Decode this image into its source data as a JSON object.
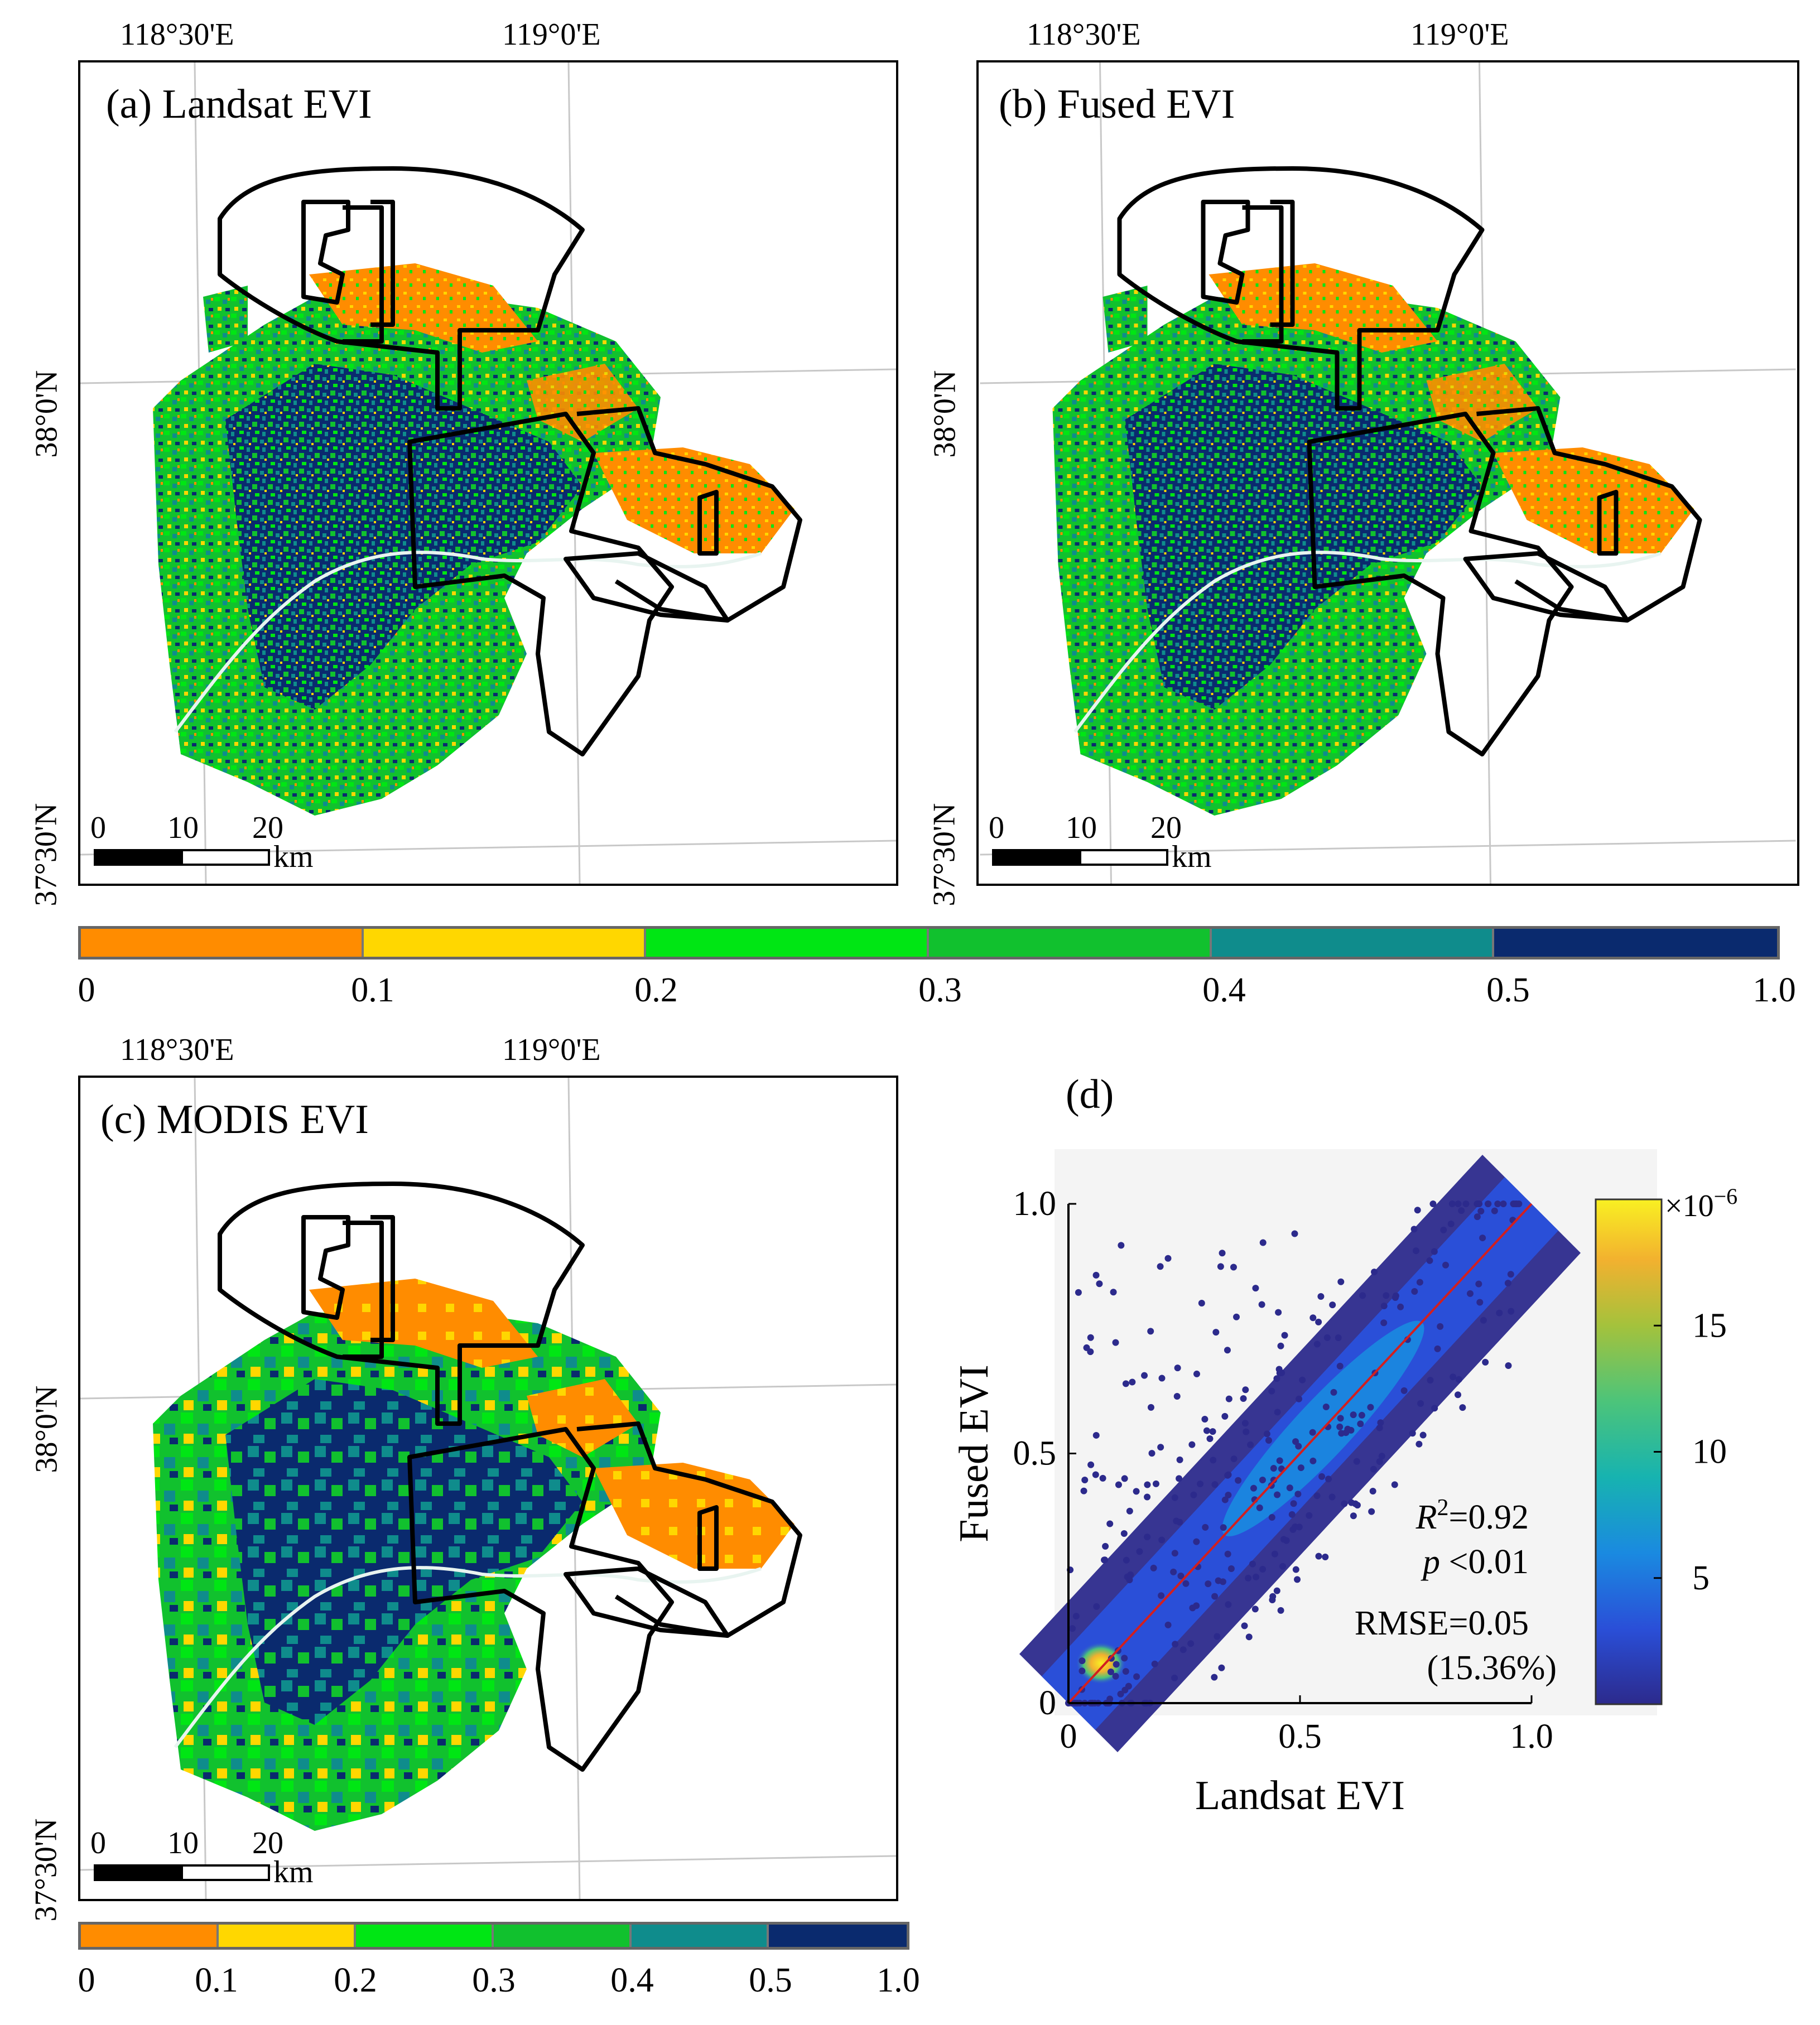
{
  "panels": [
    {
      "id": "a",
      "title": "(a) Landsat EVI",
      "lon_labels": [
        "118°30'E",
        "119°0'E"
      ],
      "lat_labels": [
        "38°0'N",
        "37°30'N"
      ],
      "scale_labels": [
        "0",
        "10",
        "20"
      ],
      "scale_unit": "km"
    },
    {
      "id": "b",
      "title": "(b) Fused EVI",
      "lon_labels": [
        "118°30'E",
        "119°0'E"
      ],
      "lat_labels": [
        "38°0'N",
        "37°30'N"
      ],
      "scale_labels": [
        "0",
        "10",
        "20"
      ],
      "scale_unit": "km"
    },
    {
      "id": "c",
      "title": "(c) MODIS EVI",
      "lon_labels": [
        "118°30'E",
        "119°0'E"
      ],
      "lat_labels": [
        "38°0'N",
        "37°30'N"
      ],
      "scale_labels": [
        "0",
        "10",
        "20"
      ],
      "scale_unit": "km"
    }
  ],
  "legend": {
    "colors": [
      "#ff8c00",
      "#ffd700",
      "#00e614",
      "#11c12e",
      "#0f8c8c",
      "#0a2a6e"
    ],
    "labels": [
      "0",
      "0.1",
      "0.2",
      "0.3",
      "0.4",
      "0.5",
      "1.0"
    ]
  },
  "chart_data": {
    "type": "scatter",
    "title": "(d)",
    "xlabel": "Landsat EVI",
    "ylabel": "Fused EVI",
    "xlim": [
      0,
      1.0
    ],
    "ylim": [
      0,
      1.0
    ],
    "xticks": [
      "0",
      "0.5",
      "1.0"
    ],
    "yticks": [
      "0",
      "0.5",
      "1.0"
    ],
    "reference_line": "1:1",
    "stats": {
      "r2_symbol": "R",
      "r2_sup": "2",
      "r2_value": "=0.92",
      "p_symbol": "p",
      "p_value": " <0.01",
      "rmse": "RMSE=0.05",
      "rmse_pct": "(15.36%)"
    },
    "density_colorbar": {
      "exponent_label": "×10",
      "exponent_sup": "−6",
      "ticks": [
        "15",
        "10",
        "5"
      ],
      "tick_values": [
        15,
        10,
        5
      ],
      "range": [
        0,
        20
      ],
      "colors": [
        "#2c2a8c",
        "#2a4fd8",
        "#1a8ae0",
        "#17b3b0",
        "#4cc47a",
        "#a4c23c",
        "#f2b12f",
        "#f9f022"
      ]
    }
  }
}
